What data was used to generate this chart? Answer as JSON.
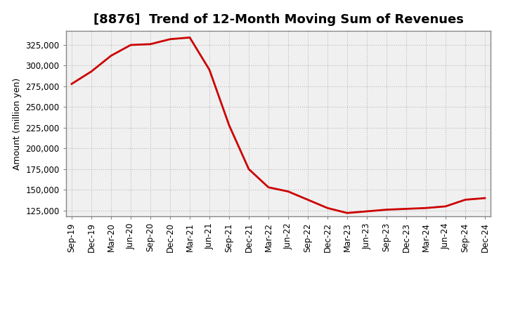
{
  "title": "[8876]  Trend of 12-Month Moving Sum of Revenues",
  "ylabel": "Amount (million yen)",
  "line_color": "#cc0000",
  "line_width": 2.0,
  "background_color": "#ffffff",
  "plot_bg_color": "#f0f0f0",
  "grid_color": "#aaaaaa",
  "ylim_min": 118000,
  "ylim_max": 342000,
  "yticks": [
    125000,
    150000,
    175000,
    200000,
    225000,
    250000,
    275000,
    300000,
    325000
  ],
  "x_labels": [
    "Sep-19",
    "Dec-19",
    "Mar-20",
    "Jun-20",
    "Sep-20",
    "Dec-20",
    "Mar-21",
    "Jun-21",
    "Sep-21",
    "Dec-21",
    "Mar-22",
    "Jun-22",
    "Sep-22",
    "Dec-22",
    "Mar-23",
    "Jun-23",
    "Sep-23",
    "Dec-23",
    "Mar-24",
    "Jun-24",
    "Sep-24",
    "Dec-24"
  ],
  "y_values": [
    278000,
    293000,
    312000,
    325000,
    326000,
    332000,
    334000,
    295000,
    228000,
    175000,
    153000,
    148000,
    138000,
    128000,
    122000,
    124000,
    126000,
    127000,
    128000,
    130000,
    138000,
    140000
  ],
  "title_fontsize": 13,
  "ylabel_fontsize": 9,
  "tick_fontsize": 8.5
}
